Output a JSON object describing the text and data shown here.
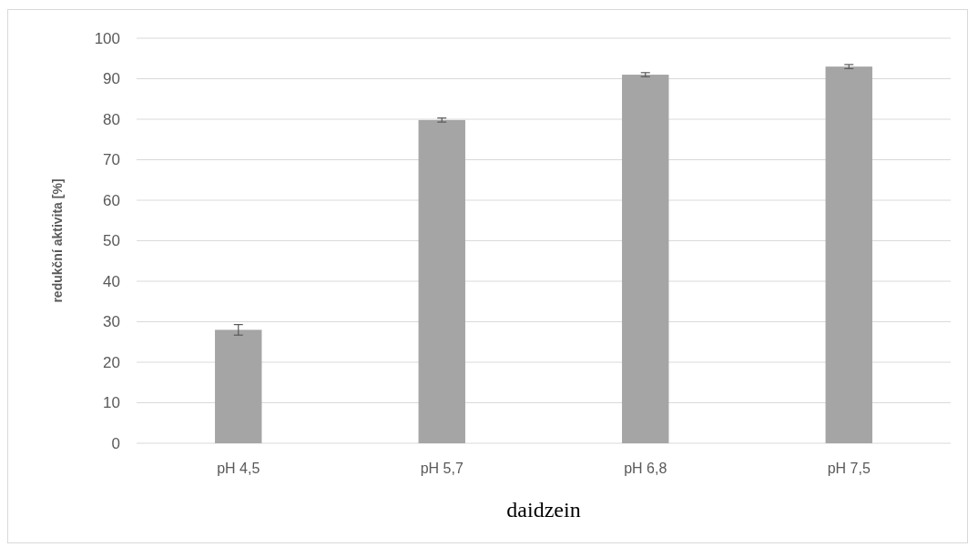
{
  "chart_data": {
    "type": "bar",
    "categories": [
      "pH 4,5",
      "pH 5,7",
      "pH 6,8",
      "pH 7,5"
    ],
    "values": [
      28,
      79.8,
      91,
      93
    ],
    "errors": [
      1.3,
      0.5,
      0.5,
      0.5
    ],
    "color": "#a5a5a5",
    "xlabel": "daidzein",
    "ylabel": "redukční aktivita [%]",
    "ylim": [
      0,
      100
    ],
    "yticks": [
      0,
      10,
      20,
      30,
      40,
      50,
      60,
      70,
      80,
      90,
      100
    ],
    "grid": "y"
  }
}
